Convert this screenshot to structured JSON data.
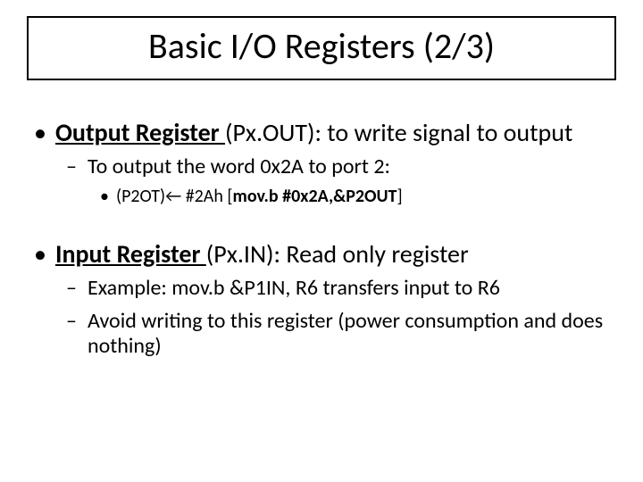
{
  "colors": {
    "background": "#ffffff",
    "text": "#000000",
    "title_border": "#000000"
  },
  "typography": {
    "font_family": "Calibri",
    "title_fontsize_pt": 40,
    "lvl1_fontsize_pt": 28,
    "lvl2_fontsize_pt": 24,
    "lvl3_fontsize_pt": 20
  },
  "title": "Basic I/O Registers (2/3)",
  "bullets": {
    "b1": {
      "strong": "Output Register ",
      "rest": "(Px.OUT): to write signal to output"
    },
    "b1_1": "To output the word 0x2A to port 2:",
    "b1_1_1": {
      "left_plain": "(P2OT)",
      "arrow": "←",
      "mid_plain": " #2Ah     ",
      "bracket_open": "[",
      "code_bold": "mov.b #0x2A,&P2OUT",
      "bracket_close": "]"
    },
    "b2": {
      "strong": "Input Register ",
      "rest": "(Px.IN):  Read only register"
    },
    "b2_1": "Example:  mov.b  &P1IN, R6 transfers input to R6",
    "b2_2": "Avoid writing to this register (power consumption and does nothing)"
  }
}
